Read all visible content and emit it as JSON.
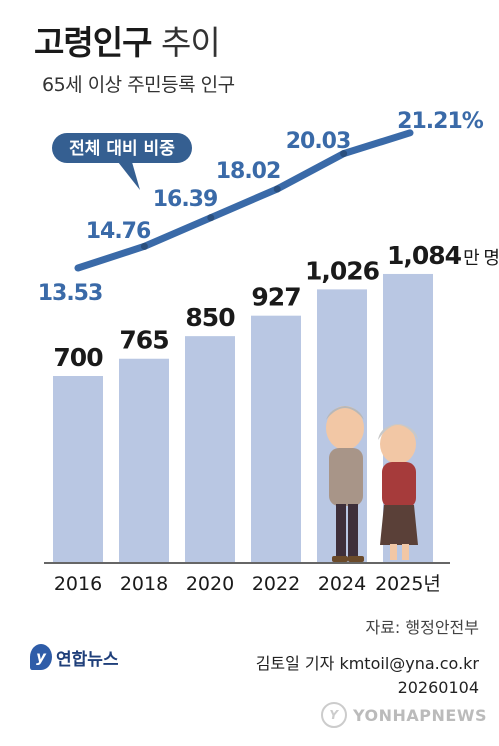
{
  "header": {
    "title_bold": "고령인구",
    "title_light": "추이",
    "subtitle": "65세 이상 주민등록 인구"
  },
  "chart_data": {
    "type": "bar",
    "categories": [
      "2016",
      "2018",
      "2020",
      "2022",
      "2024",
      "2025년"
    ],
    "series": [
      {
        "name": "",
        "kind": "bar",
        "unit": "만 명",
        "values": [
          700,
          765,
          850,
          927,
          1026,
          1084
        ],
        "labels": [
          "700",
          "765",
          "850",
          "927",
          "1,026",
          "1,084"
        ]
      },
      {
        "name": "전체 대비 비중",
        "kind": "line",
        "unit": "%",
        "values": [
          13.53,
          14.76,
          16.39,
          18.02,
          20.03,
          21.21
        ],
        "labels": [
          "13.53",
          "14.76",
          "16.39",
          "18.02",
          "20.03",
          "21.21%"
        ]
      }
    ],
    "bar_unit_label": "만 명",
    "callout": "전체 대비 비중",
    "colors": {
      "bar": "#b9c7e3",
      "line": "#3a6aa8",
      "callout_bg": "#355f91",
      "axis": "#333333"
    }
  },
  "footer": {
    "source": "자료: 행정안전부",
    "author": "김토일 기자 kmtoil@yna.co.kr",
    "date": "20260104",
    "logo": "연합뉴스",
    "watermark": "YONHAPNEWS"
  }
}
